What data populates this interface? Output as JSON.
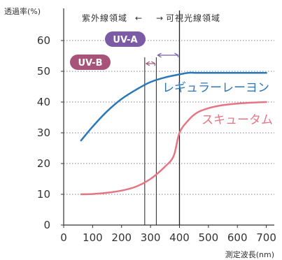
{
  "chart_data": {
    "type": "line",
    "ylabel": "透過率(%)",
    "xlabel": "測定波長(nm)",
    "xlim": [
      0,
      750
    ],
    "ylim": [
      0,
      65
    ],
    "x_ticks": [
      0,
      100,
      200,
      300,
      400,
      500,
      600,
      700
    ],
    "y_ticks": [
      0,
      10,
      20,
      30,
      40,
      50,
      60
    ],
    "grid": "horizontal dotted",
    "region_labels": {
      "uv": "紫外線領域",
      "uv_arrow": "←",
      "visible_arrow": "→",
      "visible": "可視光線領域"
    },
    "boundary_line_x": 400,
    "bands": [
      {
        "name": "UV-A",
        "range": [
          320,
          400
        ],
        "color": "#7b5aa6"
      },
      {
        "name": "UV-B",
        "range": [
          280,
          320
        ],
        "color": "#a8547a"
      }
    ],
    "series": [
      {
        "name": "レギュラーレーヨン",
        "color": "#2b78b8",
        "x": [
          60,
          100,
          150,
          200,
          250,
          300,
          350,
          400,
          430,
          460,
          500,
          600,
          700
        ],
        "y": [
          27.5,
          32,
          37,
          41,
          44,
          46.5,
          48,
          49,
          49.5,
          49.5,
          49.5,
          49.5,
          49.5
        ]
      },
      {
        "name": "スキュータム",
        "color": "#e57583",
        "x": [
          60,
          100,
          150,
          200,
          250,
          300,
          350,
          380,
          400,
          430,
          460,
          500,
          550,
          600,
          650,
          700
        ],
        "y": [
          10,
          10.1,
          10.5,
          11.2,
          12.5,
          15,
          19,
          22.5,
          30,
          34,
          36.5,
          38,
          39,
          39.5,
          39.8,
          40
        ]
      }
    ]
  }
}
